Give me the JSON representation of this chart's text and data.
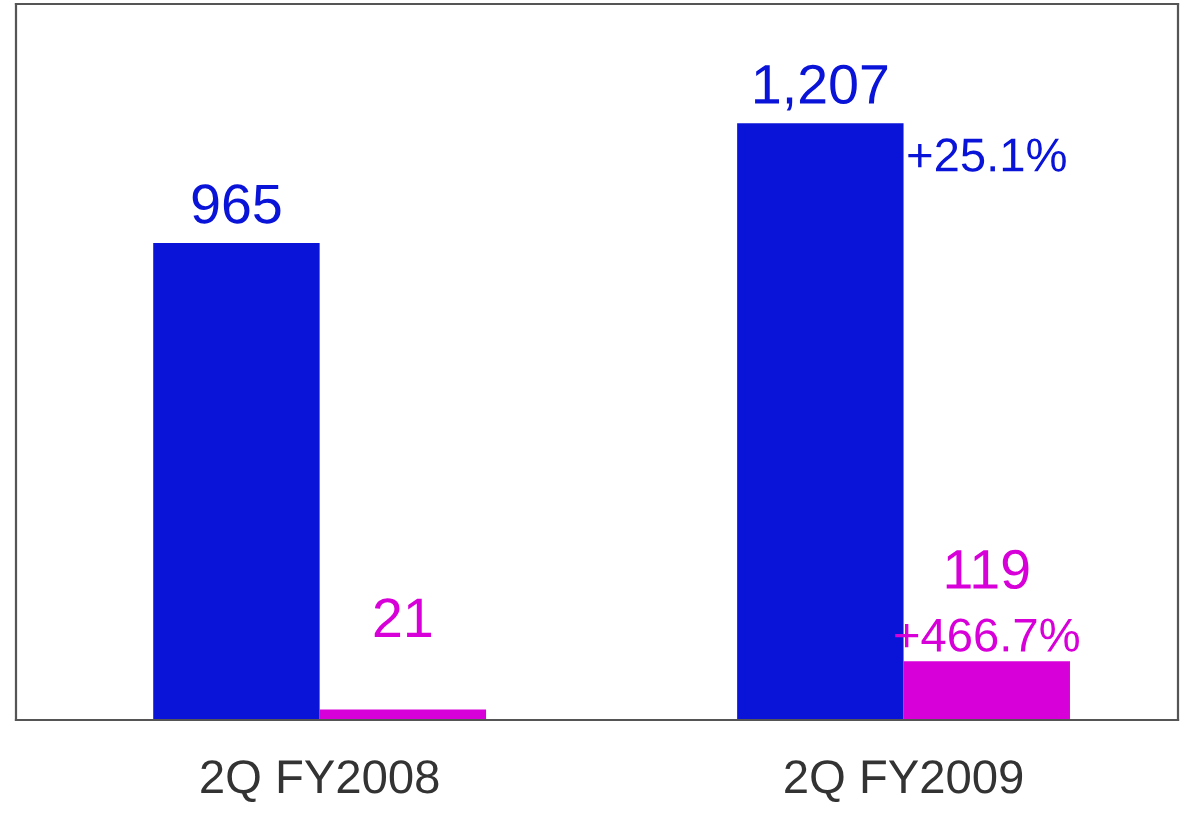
{
  "chart_data": {
    "type": "bar",
    "categories": [
      "2Q FY2008",
      "2Q FY2009"
    ],
    "series": [
      {
        "color": "#0a14d8",
        "values": [
          965,
          1207
        ],
        "value_labels": [
          "965",
          "1,207"
        ]
      },
      {
        "color": "#d800d8",
        "values": [
          21,
          119
        ],
        "value_labels": [
          "21",
          "119"
        ]
      }
    ],
    "annotations": [
      "+25.1%",
      "+466.7%"
    ],
    "data_labels": true,
    "grid": false,
    "legend": false
  }
}
